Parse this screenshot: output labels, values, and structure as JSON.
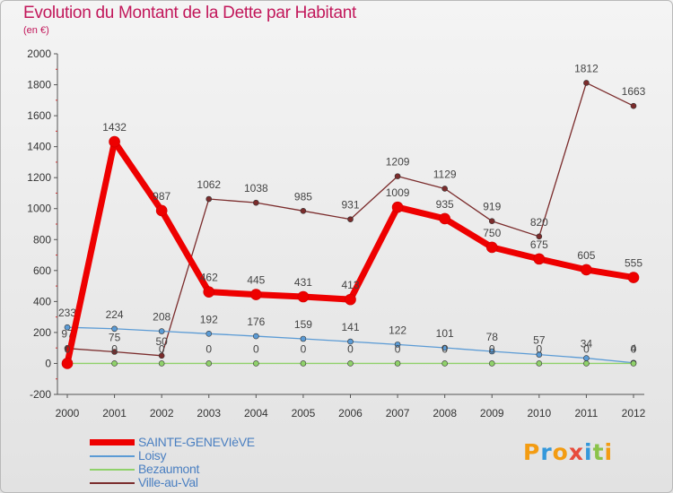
{
  "header": {
    "title": "Evolution du Montant de la Dette par Habitant",
    "subtitle": "(en €)"
  },
  "logo": {
    "letters": [
      "P",
      "r",
      "o",
      "x",
      "i",
      "t",
      "i"
    ],
    "colors": [
      "#f39c12",
      "#3498db",
      "#f39c12",
      "#e74c3c",
      "#3498db",
      "#8bc34a",
      "#f39c12"
    ]
  },
  "chart_data": {
    "type": "line",
    "title": "Evolution du Montant de la Dette par Habitant",
    "subtitle": "(en €)",
    "xlabel": "",
    "ylabel": "",
    "x": [
      "2000",
      "2001",
      "2002",
      "2003",
      "2004",
      "2005",
      "2006",
      "2007",
      "2008",
      "2009",
      "2010",
      "2011",
      "2012"
    ],
    "ylim": [
      -200,
      2000
    ],
    "yticks": [
      "-200",
      "0",
      "200",
      "400",
      "600",
      "800",
      "1000",
      "1200",
      "1400",
      "1600",
      "1800",
      "2000"
    ],
    "grid": false,
    "legend_position": "bottom-left",
    "series": [
      {
        "name": "SAINTE-GENEVIèVE",
        "color": "#ee0000",
        "values": [
          0,
          1432,
          987,
          462,
          445,
          431,
          413,
          1009,
          935,
          750,
          675,
          605,
          555
        ],
        "labels": [
          "0",
          "1432",
          "987",
          "462",
          "445",
          "431",
          "413",
          "1009",
          "935",
          "750",
          "675",
          "605",
          "555"
        ]
      },
      {
        "name": "Loisy",
        "color": "#5b9bd5",
        "values": [
          233,
          224,
          208,
          192,
          176,
          159,
          141,
          122,
          101,
          78,
          57,
          34,
          4
        ],
        "labels": [
          "233",
          "224",
          "208",
          "192",
          "176",
          "159",
          "141",
          "122",
          "101",
          "78",
          "57",
          "34",
          "4"
        ]
      },
      {
        "name": "Bezaumont",
        "color": "#8fd16a",
        "values": [
          0,
          0,
          0,
          0,
          0,
          0,
          0,
          0,
          0,
          0,
          0,
          0,
          0
        ],
        "labels": [
          "0",
          "0",
          "0",
          "0",
          "0",
          "0",
          "0",
          "0",
          "0",
          "0",
          "0",
          "0",
          "0"
        ]
      },
      {
        "name": "Ville-au-Val",
        "color": "#7b2c2c",
        "values": [
          97,
          75,
          50,
          1062,
          1038,
          985,
          931,
          1209,
          1129,
          919,
          820,
          1812,
          1663
        ],
        "labels": [
          "97",
          "75",
          "50",
          "1062",
          "1038",
          "985",
          "931",
          "1209",
          "1129",
          "919",
          "820",
          "1812",
          "1663"
        ]
      }
    ]
  }
}
